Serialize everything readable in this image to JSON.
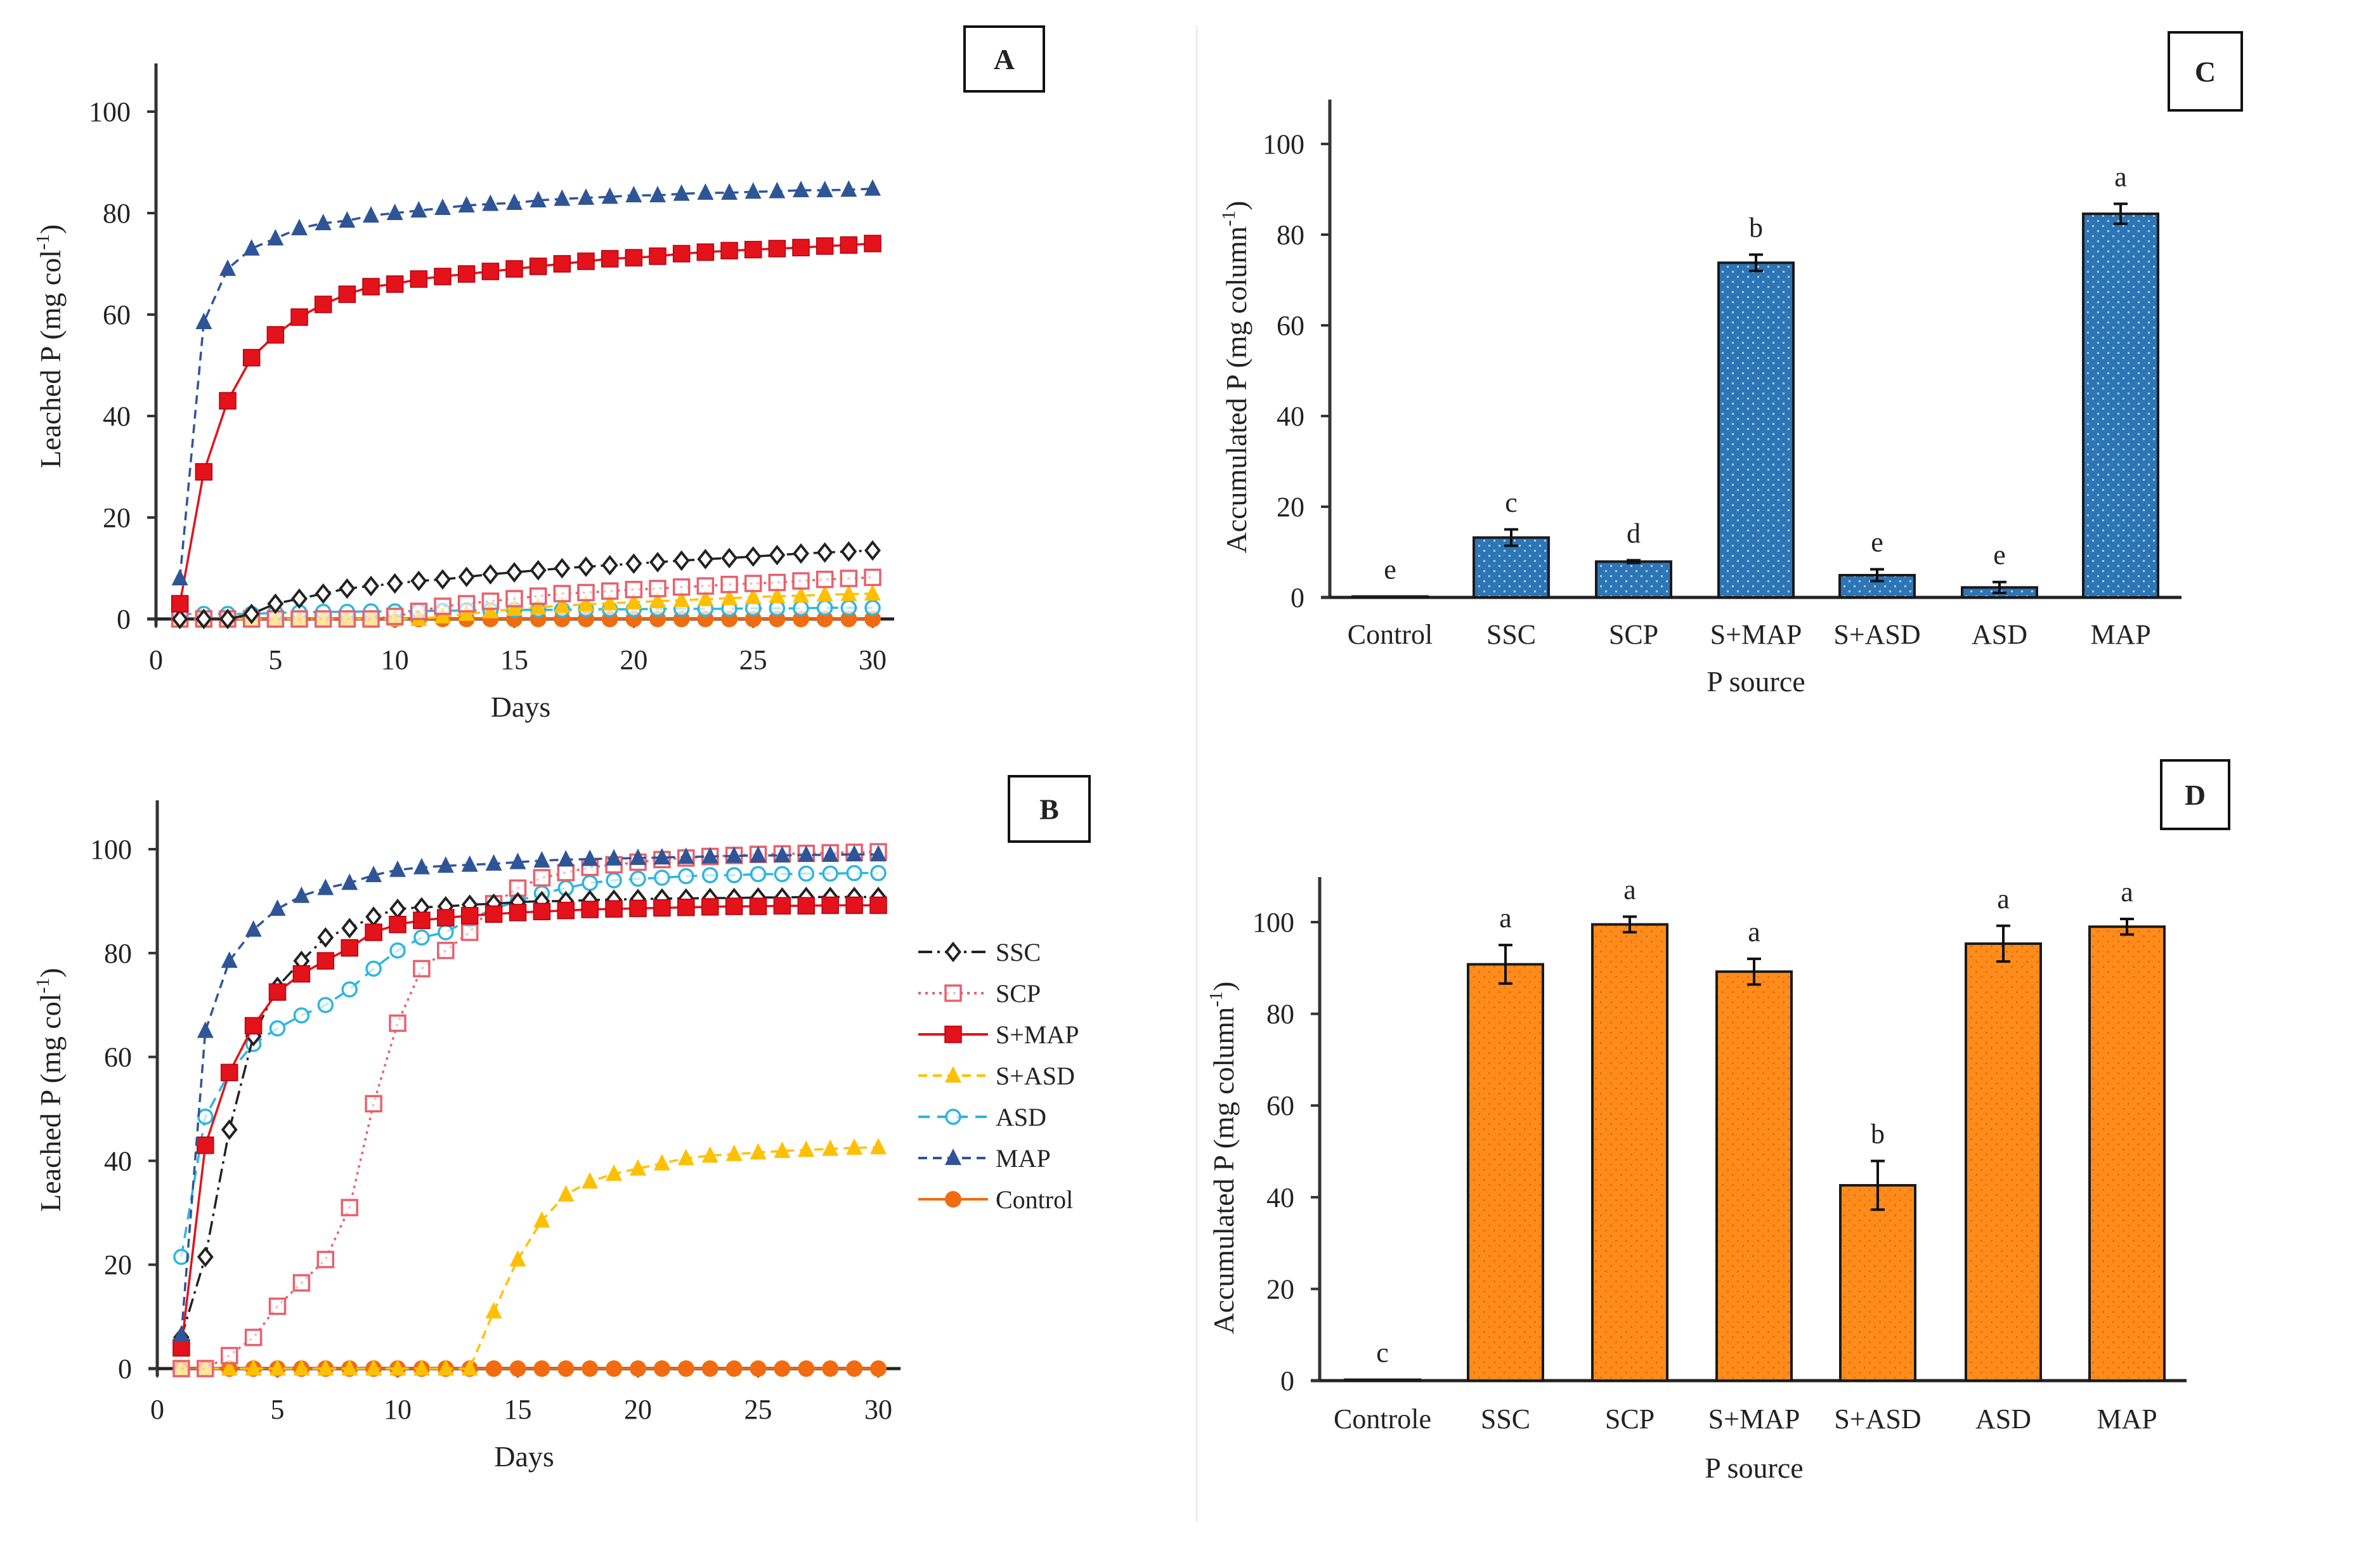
{
  "chart_data": [
    {
      "id": "A",
      "type": "line",
      "panel_label": "A",
      "xlabel": "Days",
      "ylabel": "Leached P (mg col",
      "ylabel_sup": "-1",
      "ylabel_tail": ")",
      "xlim": [
        0,
        30
      ],
      "ylim": [
        0,
        110
      ],
      "xticks": [
        0,
        5,
        10,
        15,
        20,
        25,
        30
      ],
      "yticks": [
        0,
        20,
        40,
        60,
        80,
        100
      ],
      "grid": false,
      "x": [
        1,
        2,
        3,
        4,
        5,
        6,
        7,
        8,
        9,
        10,
        11,
        12,
        13,
        14,
        15,
        16,
        17,
        18,
        19,
        20,
        21,
        22,
        23,
        24,
        25,
        26,
        27,
        28,
        29,
        30
      ],
      "series": [
        {
          "name": "SSC",
          "color": "#222222",
          "marker": "diamond-open",
          "dash": "dashdot",
          "values": [
            0,
            0,
            0,
            1,
            3,
            4,
            5,
            6,
            6.5,
            7,
            7.5,
            7.8,
            8.3,
            8.8,
            9.2,
            9.6,
            10,
            10.3,
            10.6,
            10.9,
            11.2,
            11.5,
            11.8,
            12,
            12.3,
            12.6,
            12.9,
            13.1,
            13.3,
            13.5
          ]
        },
        {
          "name": "SCP",
          "color": "#e8606d",
          "marker": "square-open",
          "dash": "dotted",
          "values": [
            0,
            0,
            0,
            0,
            0,
            0,
            0,
            0,
            0,
            0.5,
            1.5,
            2.5,
            3,
            3.5,
            4,
            4.5,
            5,
            5.2,
            5.5,
            5.8,
            6,
            6.3,
            6.5,
            6.8,
            7,
            7.2,
            7.5,
            7.8,
            8,
            8.2
          ]
        },
        {
          "name": "S+MAP",
          "color": "#e3121b",
          "marker": "square",
          "dash": "solid",
          "values": [
            3,
            29,
            43,
            51.5,
            56,
            59.5,
            62,
            64,
            65.5,
            66,
            67,
            67.5,
            68,
            68.5,
            69,
            69.5,
            70,
            70.5,
            71,
            71.2,
            71.5,
            72,
            72.3,
            72.6,
            72.8,
            73,
            73.2,
            73.5,
            73.7,
            74
          ]
        },
        {
          "name": "S+ASD",
          "color": "#ffc000",
          "marker": "triangle",
          "dash": "dashed",
          "values": [
            0,
            0,
            0,
            0,
            0,
            0,
            0,
            0,
            0,
            0,
            0,
            0.5,
            1,
            1.5,
            2,
            2.3,
            2.6,
            2.9,
            3.1,
            3.3,
            3.5,
            3.7,
            3.9,
            4.1,
            4.3,
            4.5,
            4.6,
            4.8,
            4.9,
            5
          ]
        },
        {
          "name": "ASD",
          "color": "#2db5e0",
          "marker": "circle-open",
          "dash": "longdash",
          "values": [
            1,
            1,
            1,
            1,
            1.2,
            1.3,
            1.4,
            1.4,
            1.5,
            1.5,
            1.6,
            1.6,
            1.7,
            1.7,
            1.8,
            1.8,
            1.8,
            1.9,
            1.9,
            1.9,
            2,
            2,
            2,
            2,
            2.1,
            2.1,
            2.1,
            2.2,
            2.2,
            2.2
          ]
        },
        {
          "name": "MAP",
          "color": "#2f5597",
          "marker": "triangle",
          "dash": "dashed",
          "values": [
            8,
            58.5,
            69,
            73,
            75,
            77,
            78,
            78.5,
            79.5,
            80,
            80.5,
            81,
            81.5,
            81.8,
            82,
            82.5,
            82.8,
            83,
            83.2,
            83.5,
            83.5,
            83.8,
            84,
            84,
            84.2,
            84.3,
            84.5,
            84.5,
            84.6,
            84.8
          ]
        },
        {
          "name": "Control",
          "color": "#f26b10",
          "marker": "circle",
          "dash": "solid",
          "values": [
            0,
            0,
            0,
            0,
            0,
            0,
            0,
            0,
            0,
            0,
            0,
            0,
            0,
            0,
            0,
            0,
            0,
            0,
            0,
            0,
            0,
            0,
            0,
            0,
            0,
            0,
            0,
            0,
            0,
            0
          ]
        }
      ]
    },
    {
      "id": "B",
      "type": "line",
      "panel_label": "B",
      "xlabel": "Days",
      "ylabel": "Leached P (mg col",
      "ylabel_sup": "-1",
      "ylabel_tail": ")",
      "xlim": [
        0,
        30
      ],
      "ylim": [
        0,
        110
      ],
      "xticks": [
        0,
        5,
        10,
        15,
        20,
        25,
        30
      ],
      "yticks": [
        0,
        20,
        40,
        60,
        80,
        100
      ],
      "grid": false,
      "legend_position": "right",
      "x": [
        1,
        2,
        3,
        4,
        5,
        6,
        7,
        8,
        9,
        10,
        11,
        12,
        13,
        14,
        15,
        16,
        17,
        18,
        19,
        20,
        21,
        22,
        23,
        24,
        25,
        26,
        27,
        28,
        29,
        30
      ],
      "series": [
        {
          "name": "SSC",
          "color": "#222222",
          "marker": "diamond-open",
          "dash": "dashdot",
          "values": [
            6,
            21.5,
            46,
            64,
            73.5,
            78.5,
            83,
            84.8,
            87,
            88.5,
            88.8,
            89,
            89.3,
            89.5,
            89.8,
            90,
            90,
            90.2,
            90.3,
            90.4,
            90.5,
            90.5,
            90.6,
            90.6,
            90.7,
            90.7,
            90.8,
            90.8,
            90.8,
            90.8
          ]
        },
        {
          "name": "SCP",
          "color": "#e8606d",
          "marker": "square-open",
          "dash": "dotted",
          "values": [
            0,
            0,
            2.5,
            6,
            12,
            16.5,
            21,
            31,
            51,
            66.5,
            77,
            80.5,
            84,
            89.5,
            92.5,
            94.5,
            95.5,
            96.5,
            97,
            97.5,
            98,
            98.3,
            98.6,
            98.8,
            99,
            99.1,
            99.2,
            99.3,
            99.4,
            99.5
          ]
        },
        {
          "name": "S+MAP",
          "color": "#e3121b",
          "marker": "square",
          "dash": "solid",
          "values": [
            4,
            43,
            57,
            66,
            72.5,
            76,
            78.5,
            81,
            84,
            85.5,
            86.3,
            86.8,
            87.2,
            87.5,
            87.8,
            88,
            88.2,
            88.4,
            88.5,
            88.6,
            88.7,
            88.8,
            88.9,
            89,
            89,
            89.1,
            89.1,
            89.2,
            89.2,
            89.2
          ]
        },
        {
          "name": "S+ASD",
          "color": "#ffc000",
          "marker": "triangle",
          "dash": "dashed",
          "values": [
            0,
            0,
            0,
            0,
            0,
            0,
            0,
            0,
            0,
            0,
            0,
            0,
            0,
            11,
            21,
            28.5,
            33.5,
            36,
            37.5,
            38.5,
            39.5,
            40.5,
            41,
            41.3,
            41.6,
            41.9,
            42.1,
            42.3,
            42.5,
            42.6
          ]
        },
        {
          "name": "ASD",
          "color": "#2db5e0",
          "marker": "circle-open",
          "dash": "longdash",
          "values": [
            21.5,
            48.5,
            57,
            62.5,
            65.5,
            68,
            70,
            73,
            77,
            80.5,
            83,
            84,
            86.5,
            88.5,
            90,
            91.5,
            92.5,
            93.5,
            94,
            94.3,
            94.5,
            94.8,
            95,
            95,
            95.2,
            95.2,
            95.3,
            95.3,
            95.4,
            95.4
          ]
        },
        {
          "name": "MAP",
          "color": "#2f5597",
          "marker": "triangle",
          "dash": "dashed",
          "values": [
            6.5,
            65,
            78.5,
            84.5,
            88.5,
            91,
            92.5,
            93.5,
            95,
            96,
            96.5,
            96.8,
            97,
            97.2,
            97.5,
            97.8,
            98,
            98.1,
            98.2,
            98.3,
            98.4,
            98.5,
            98.6,
            98.7,
            98.8,
            98.8,
            98.9,
            98.9,
            99,
            99
          ]
        },
        {
          "name": "Control",
          "color": "#f26b10",
          "marker": "circle",
          "dash": "solid",
          "values": [
            0,
            0,
            0,
            0,
            0,
            0,
            0,
            0,
            0,
            0,
            0,
            0,
            0,
            0,
            0,
            0,
            0,
            0,
            0,
            0,
            0,
            0,
            0,
            0,
            0,
            0,
            0,
            0,
            0,
            0
          ]
        }
      ]
    },
    {
      "id": "C",
      "type": "bar",
      "panel_label": "C",
      "xlabel": "P source",
      "ylabel": "Accumulated P (mg column",
      "ylabel_sup": "-1",
      "ylabel_tail": ")",
      "ylim": [
        0,
        110
      ],
      "yticks": [
        0,
        20,
        40,
        60,
        80,
        100
      ],
      "grid": false,
      "bar_color": "#2e75b6",
      "categories": [
        "Control",
        "SSC",
        "SCP",
        "S+MAP",
        "S+ASD",
        "ASD",
        "MAP"
      ],
      "values": [
        0.2,
        13.2,
        7.9,
        73.8,
        4.9,
        2.2,
        84.6
      ],
      "errors": [
        0,
        1.8,
        0.3,
        1.8,
        1.3,
        1.2,
        2.2
      ],
      "letters": [
        "e",
        "c",
        "d",
        "b",
        "e",
        "e",
        "a"
      ]
    },
    {
      "id": "D",
      "type": "bar",
      "panel_label": "D",
      "xlabel": "P source",
      "ylabel": "Accumulated P (mg column",
      "ylabel_sup": "-1",
      "ylabel_tail": ")",
      "ylim": [
        0,
        110
      ],
      "yticks": [
        0,
        20,
        40,
        60,
        80,
        100
      ],
      "grid": false,
      "bar_color": "#ff8c1a",
      "categories": [
        "Controle",
        "SSC",
        "SCP",
        "S+MAP",
        "S+ASD",
        "ASD",
        "MAP"
      ],
      "values": [
        0.2,
        90.8,
        99.5,
        89.2,
        42.6,
        95.3,
        99.0
      ],
      "errors": [
        0,
        4.2,
        1.7,
        2.8,
        5.3,
        3.9,
        1.7
      ],
      "letters": [
        "c",
        "a",
        "a",
        "a",
        "b",
        "a",
        "a"
      ]
    }
  ]
}
